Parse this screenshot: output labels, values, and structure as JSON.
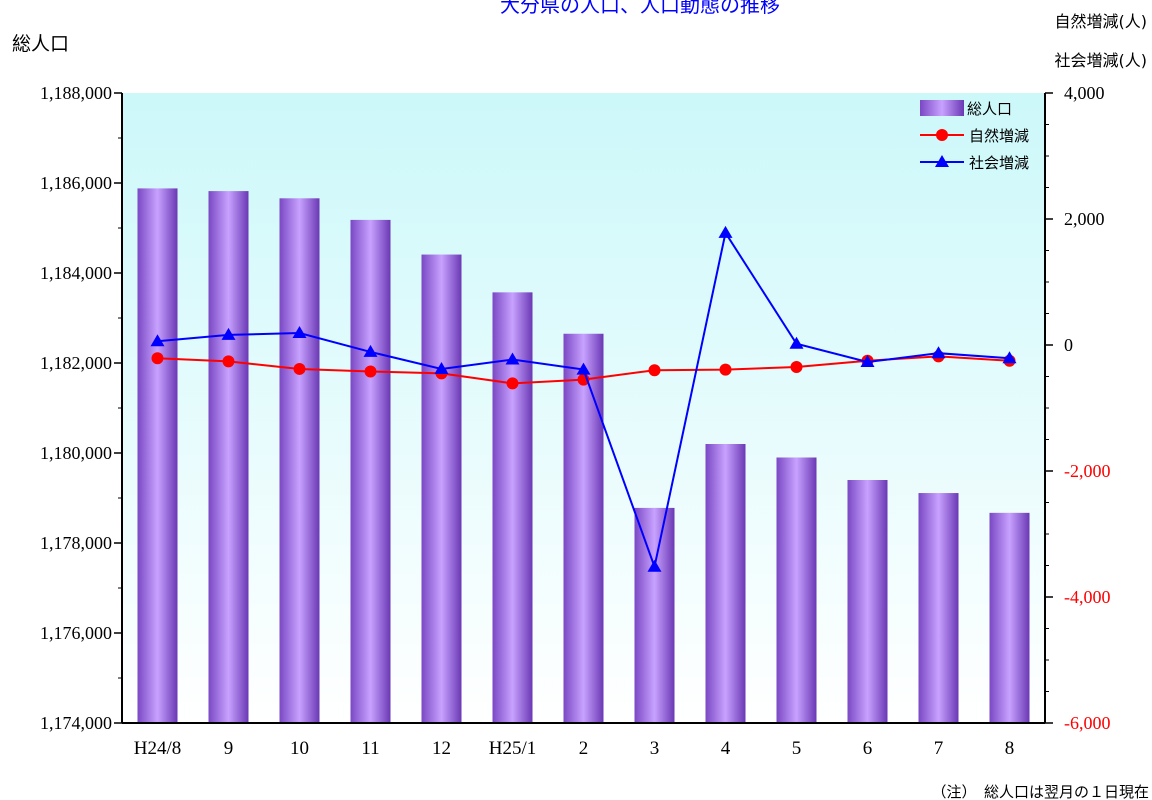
{
  "chart_data": {
    "type": "bar+line",
    "title": "大分県の人口、人口動態の推移",
    "left_axis_label": "総人口",
    "right_axis_label_1": "自然増減(人)",
    "right_axis_label_2": "社会増減(人)",
    "note": "（注）　総人口は翌月の１日現在",
    "categories": [
      "H24/8",
      "9",
      "10",
      "11",
      "12",
      "H25/1",
      "2",
      "3",
      "4",
      "5",
      "6",
      "7",
      "8"
    ],
    "left_axis": {
      "min": 1174000,
      "max": 1188000,
      "step": 2000,
      "tick_labels": [
        "1,174,000",
        "1,176,000",
        "1,178,000",
        "1,180,000",
        "1,182,000",
        "1,184,000",
        "1,186,000",
        "1,188,000"
      ]
    },
    "right_axis": {
      "min": -6000,
      "max": 4000,
      "step": 2000,
      "tick_labels": [
        "-6,000",
        "-4,000",
        "-2,000",
        "0",
        "2,000",
        "4,000"
      ],
      "negative_color": "#ff0000"
    },
    "series": [
      {
        "name": "総人口",
        "kind": "bar",
        "axis": "left",
        "color": "#a070e0",
        "values": [
          1185880,
          1185820,
          1185660,
          1185180,
          1184410,
          1183570,
          1182650,
          1178780,
          1180200,
          1179900,
          1179400,
          1179110,
          1178670
        ]
      },
      {
        "name": "自然増減",
        "kind": "line",
        "axis": "right",
        "color": "#ff0000",
        "marker": "circle",
        "values": [
          -210,
          -260,
          -380,
          -420,
          -450,
          -610,
          -550,
          -400,
          -390,
          -350,
          -250,
          -180,
          -250
        ]
      },
      {
        "name": "社会増減",
        "kind": "line",
        "axis": "right",
        "color": "#0000ff",
        "marker": "triangle",
        "values": [
          60,
          160,
          190,
          -110,
          -380,
          -230,
          -390,
          -3520,
          1780,
          20,
          -270,
          -130,
          -210
        ]
      }
    ],
    "legend_position": "top-right",
    "plot_background": "gradient cyan to white"
  }
}
